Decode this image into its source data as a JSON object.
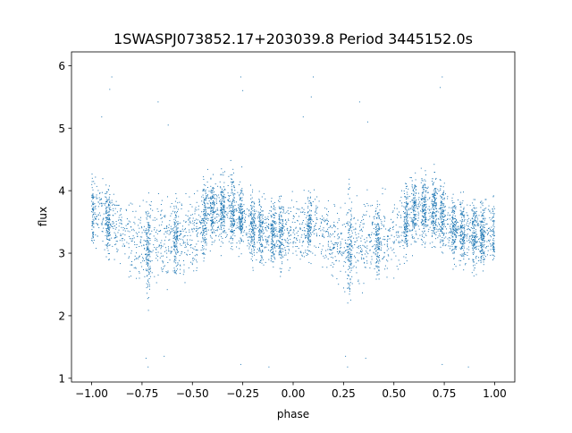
{
  "chart_data": {
    "type": "scatter",
    "title": "1SWASPJ073852.17+203039.8 Period 3445152.0s",
    "xlabel": "phase",
    "ylabel": "flux",
    "xlim": [
      -1.1,
      1.1
    ],
    "ylim": [
      0.94,
      6.22
    ],
    "xticks": [
      -1.0,
      -0.75,
      -0.5,
      -0.25,
      0.0,
      0.25,
      0.5,
      0.75,
      1.0
    ],
    "xtick_labels": [
      "−1.00",
      "−0.75",
      "−0.50",
      "−0.25",
      "0.00",
      "0.25",
      "0.50",
      "0.75",
      "1.00"
    ],
    "yticks": [
      1,
      2,
      3,
      4,
      5,
      6
    ],
    "ytick_labels": [
      "1",
      "2",
      "3",
      "4",
      "5",
      "6"
    ],
    "grid": false,
    "legend": "none",
    "marker_color": "#1f77b4",
    "series": [
      {
        "profile": {
          "phase": [
            -1.0,
            -0.9,
            -0.8,
            -0.72,
            -0.6,
            -0.5,
            -0.4,
            -0.3,
            -0.2,
            -0.1,
            0.0,
            0.1,
            0.2,
            0.28,
            0.4,
            0.5,
            0.6,
            0.7,
            0.8,
            0.9,
            1.0
          ],
          "median_flux": [
            3.7,
            3.5,
            3.2,
            3.1,
            3.2,
            3.3,
            3.7,
            3.7,
            3.4,
            3.3,
            3.3,
            3.5,
            3.2,
            3.1,
            3.2,
            3.3,
            3.7,
            3.7,
            3.4,
            3.3,
            3.3
          ],
          "spread": [
            0.35,
            0.35,
            0.4,
            0.5,
            0.4,
            0.4,
            0.35,
            0.35,
            0.35,
            0.35,
            0.35,
            0.35,
            0.4,
            0.5,
            0.4,
            0.4,
            0.35,
            0.35,
            0.35,
            0.35,
            0.35
          ]
        },
        "dense_columns": [
          -1.0,
          -0.92,
          -0.72,
          -0.58,
          -0.44,
          -0.4,
          -0.35,
          -0.3,
          -0.26,
          -0.2,
          -0.16,
          -0.1,
          -0.06,
          0.08,
          0.28,
          0.42,
          0.56,
          0.6,
          0.65,
          0.7,
          0.74,
          0.8,
          0.84,
          0.9,
          0.94,
          1.0
        ],
        "extreme_points": [
          {
            "phase": -0.9,
            "flux": 5.82
          },
          {
            "phase": -0.91,
            "flux": 5.62
          },
          {
            "phase": -0.26,
            "flux": 5.82
          },
          {
            "phase": -0.25,
            "flux": 5.6
          },
          {
            "phase": 0.1,
            "flux": 5.82
          },
          {
            "phase": 0.09,
            "flux": 5.5
          },
          {
            "phase": 0.74,
            "flux": 5.82
          },
          {
            "phase": 0.73,
            "flux": 5.65
          },
          {
            "phase": -0.72,
            "flux": 1.18
          },
          {
            "phase": -0.73,
            "flux": 1.32
          },
          {
            "phase": -0.26,
            "flux": 1.22
          },
          {
            "phase": -0.12,
            "flux": 1.18
          },
          {
            "phase": 0.27,
            "flux": 1.18
          },
          {
            "phase": 0.26,
            "flux": 1.35
          },
          {
            "phase": 0.74,
            "flux": 1.22
          },
          {
            "phase": 0.87,
            "flux": 1.18
          },
          {
            "phase": -0.64,
            "flux": 1.35
          },
          {
            "phase": 0.36,
            "flux": 1.32
          },
          {
            "phase": -0.95,
            "flux": 5.18
          },
          {
            "phase": 0.05,
            "flux": 5.18
          },
          {
            "phase": -0.62,
            "flux": 5.05
          },
          {
            "phase": 0.37,
            "flux": 5.1
          },
          {
            "phase": -0.67,
            "flux": 5.42
          },
          {
            "phase": 0.33,
            "flux": 5.42
          }
        ]
      }
    ]
  }
}
